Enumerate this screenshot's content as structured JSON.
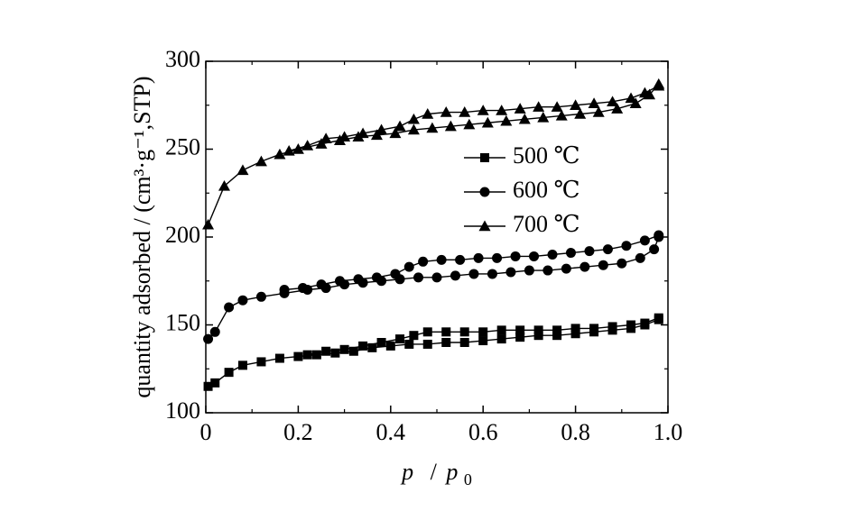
{
  "chart_data": {
    "type": "line",
    "title": "",
    "xlabel_parts": {
      "p": "p",
      "slash": "/",
      "p0": "p",
      "sub": "0"
    },
    "ylabel": "quantity adsorbed / (cm³·g⁻¹,STP)",
    "xlim": [
      0,
      1.0
    ],
    "ylim": [
      100,
      300
    ],
    "xticks": [
      "0",
      "0.2",
      "0.4",
      "0.6",
      "0.8",
      "1.0"
    ],
    "yticks": [
      "100",
      "150",
      "200",
      "250",
      "300"
    ],
    "grid": false,
    "legend_placement": "upper-right",
    "series": [
      {
        "name": "500 ℃",
        "marker": "square",
        "adsorption": {
          "x": [
            0.005,
            0.02,
            0.05,
            0.08,
            0.12,
            0.16,
            0.2,
            0.24,
            0.28,
            0.32,
            0.36,
            0.4,
            0.44,
            0.48,
            0.52,
            0.56,
            0.6,
            0.64,
            0.68,
            0.72,
            0.76,
            0.8,
            0.84,
            0.88,
            0.92,
            0.95,
            0.98
          ],
          "y": [
            115,
            117,
            123,
            127,
            129,
            131,
            132,
            133,
            134,
            135,
            137,
            138,
            139,
            139,
            140,
            140,
            141,
            142,
            143,
            144,
            144,
            145,
            146,
            147,
            148,
            150,
            153
          ]
        },
        "desorption": {
          "x": [
            0.98,
            0.95,
            0.92,
            0.88,
            0.84,
            0.8,
            0.76,
            0.72,
            0.68,
            0.64,
            0.6,
            0.56,
            0.52,
            0.48,
            0.45,
            0.42,
            0.38,
            0.34,
            0.3,
            0.26,
            0.22
          ],
          "y": [
            154,
            151,
            150,
            149,
            148,
            148,
            147,
            147,
            147,
            147,
            146,
            146,
            146,
            146,
            144,
            142,
            140,
            138,
            136,
            135,
            133
          ]
        }
      },
      {
        "name": "600 ℃",
        "marker": "circle",
        "adsorption": {
          "x": [
            0.005,
            0.02,
            0.05,
            0.08,
            0.12,
            0.17,
            0.22,
            0.26,
            0.3,
            0.34,
            0.38,
            0.42,
            0.46,
            0.5,
            0.54,
            0.58,
            0.62,
            0.66,
            0.7,
            0.74,
            0.78,
            0.82,
            0.86,
            0.9,
            0.94,
            0.97,
            0.98
          ],
          "y": [
            142,
            146,
            160,
            164,
            166,
            168,
            170,
            171,
            173,
            174,
            175,
            176,
            177,
            177,
            178,
            179,
            179,
            180,
            181,
            181,
            182,
            183,
            184,
            185,
            188,
            193,
            200
          ]
        },
        "desorption": {
          "x": [
            0.98,
            0.95,
            0.91,
            0.87,
            0.83,
            0.79,
            0.75,
            0.71,
            0.67,
            0.63,
            0.59,
            0.55,
            0.51,
            0.47,
            0.44,
            0.41,
            0.37,
            0.33,
            0.29,
            0.25,
            0.21,
            0.17
          ],
          "y": [
            201,
            198,
            195,
            193,
            192,
            191,
            190,
            189,
            189,
            188,
            188,
            187,
            187,
            186,
            183,
            179,
            177,
            176,
            175,
            173,
            171,
            170
          ]
        }
      },
      {
        "name": "700 ℃",
        "marker": "triangle",
        "adsorption": {
          "x": [
            0.005,
            0.04,
            0.08,
            0.12,
            0.16,
            0.2,
            0.25,
            0.29,
            0.33,
            0.37,
            0.41,
            0.45,
            0.49,
            0.53,
            0.57,
            0.61,
            0.65,
            0.69,
            0.73,
            0.77,
            0.81,
            0.85,
            0.89,
            0.93,
            0.96,
            0.98
          ],
          "y": [
            207,
            229,
            238,
            243,
            247,
            250,
            253,
            255,
            257,
            258,
            259,
            261,
            262,
            263,
            264,
            265,
            266,
            267,
            268,
            269,
            270,
            271,
            273,
            276,
            281,
            287
          ]
        },
        "desorption": {
          "x": [
            0.98,
            0.95,
            0.92,
            0.88,
            0.84,
            0.8,
            0.76,
            0.72,
            0.68,
            0.64,
            0.6,
            0.56,
            0.52,
            0.48,
            0.45,
            0.42,
            0.38,
            0.34,
            0.3,
            0.26,
            0.22,
            0.18
          ],
          "y": [
            286,
            282,
            279,
            277,
            276,
            275,
            274,
            274,
            273,
            272,
            272,
            271,
            271,
            270,
            267,
            263,
            261,
            259,
            257,
            256,
            252,
            249
          ]
        }
      }
    ]
  }
}
